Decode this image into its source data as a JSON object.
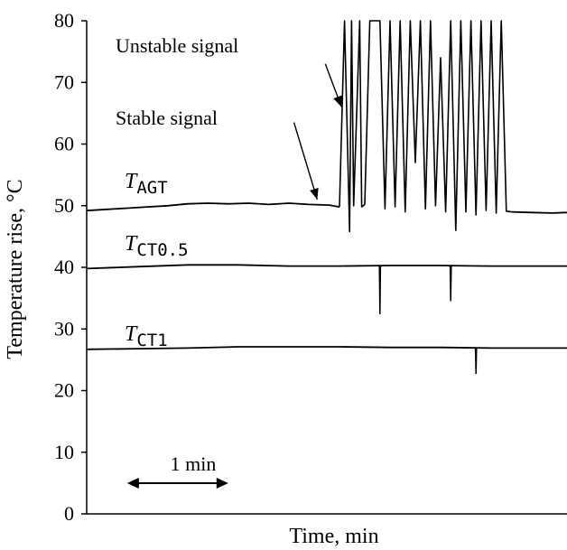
{
  "chart_data": {
    "type": "line",
    "xlabel": "Time, min",
    "ylabel": "Temperature rise, °C",
    "ylim": [
      0,
      80
    ],
    "yticks": [
      "0",
      "10",
      "20",
      "30",
      "40",
      "50",
      "60",
      "70",
      "80"
    ],
    "xlim_min": [
      0,
      4.75
    ],
    "grid": false,
    "legend": "none",
    "scale_bar": {
      "label": "1 min",
      "from_min": 0.4,
      "to_min": 1.4
    },
    "series": [
      {
        "name": "T",
        "subscript": "AGT",
        "x": [
          0,
          0.2,
          0.4,
          0.6,
          0.8,
          1.0,
          1.2,
          1.4,
          1.6,
          1.8,
          2.0,
          2.2,
          2.4,
          2.5
        ],
        "y": [
          49.2,
          49.4,
          49.6,
          49.8,
          50.0,
          50.3,
          50.4,
          50.3,
          50.4,
          50.2,
          50.4,
          50.2,
          50.1,
          49.8
        ],
        "unstable": {
          "x": [
            2.55,
            2.6,
            2.62,
            2.64,
            2.7,
            2.72,
            2.75,
            2.8,
            2.9,
            2.95,
            3.0,
            3.05,
            3.1,
            3.15,
            3.2,
            3.25,
            3.3,
            3.35,
            3.4,
            3.45,
            3.5,
            3.55,
            3.6,
            3.65,
            3.7,
            3.75,
            3.8,
            3.85,
            3.9,
            3.95,
            4.0,
            4.05,
            4.1,
            4.15
          ],
          "y": [
            80,
            45.8,
            80,
            50,
            80,
            49.8,
            50.2,
            80,
            80,
            49.5,
            80,
            49.8,
            80,
            49,
            80,
            57,
            80,
            49.5,
            80,
            50,
            74,
            49,
            80,
            46,
            80,
            49,
            80,
            48.5,
            80,
            49.2,
            80,
            48.8,
            80,
            49.1
          ]
        },
        "tail": {
          "x": [
            4.2,
            4.4,
            4.6,
            4.75
          ],
          "y": [
            49.0,
            48.9,
            48.8,
            48.9
          ]
        }
      },
      {
        "name": "T",
        "subscript": "CT0.5",
        "x": [
          0,
          0.5,
          1.0,
          1.5,
          2.0,
          2.5,
          3.0,
          3.5,
          4.0,
          4.5,
          4.75
        ],
        "y": [
          39.8,
          40.1,
          40.4,
          40.4,
          40.2,
          40.2,
          40.3,
          40.3,
          40.2,
          40.2,
          40.2
        ],
        "spikes": [
          {
            "x": 2.9,
            "y": 32.4
          },
          {
            "x": 3.6,
            "y": 34.5
          }
        ]
      },
      {
        "name": "T",
        "subscript": "CT1",
        "x": [
          0,
          0.5,
          1.0,
          1.5,
          2.0,
          2.5,
          3.0,
          3.5,
          4.0,
          4.5,
          4.75
        ],
        "y": [
          26.7,
          26.8,
          26.9,
          27.1,
          27.1,
          27.1,
          27.0,
          27.0,
          26.9,
          26.9,
          26.9
        ],
        "spikes": [
          {
            "x": 3.85,
            "y": 22.7
          }
        ]
      }
    ],
    "annotations": [
      {
        "text": "Unstable signal",
        "arrow_from": [
          2.36,
          73
        ],
        "arrow_to": [
          2.52,
          66
        ]
      },
      {
        "text": "Stable signal",
        "arrow_from": [
          2.05,
          63.5
        ],
        "arrow_to": [
          2.28,
          51
        ]
      }
    ]
  }
}
